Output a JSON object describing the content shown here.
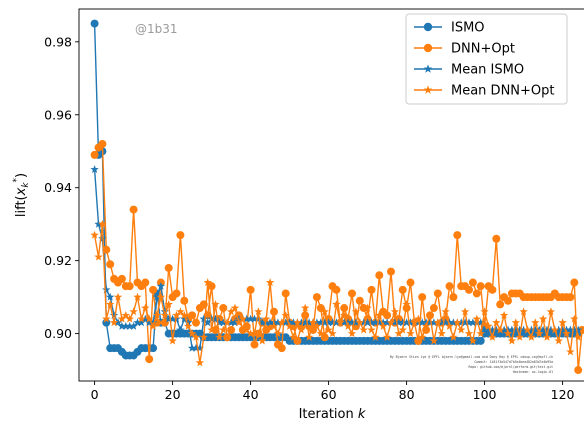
{
  "chart_data": {
    "type": "line",
    "xlabel": "Iteration k",
    "ylabel": "lift(x_k*)",
    "xlim": [
      -4,
      126
    ],
    "ylim": [
      0.887,
      0.989
    ],
    "xticks": [
      0,
      20,
      40,
      60,
      80,
      100,
      120
    ],
    "yticks": [
      0.9,
      0.92,
      0.94,
      0.96,
      0.98
    ],
    "ytick_labels": [
      "0.90",
      "0.92",
      "0.94",
      "0.96",
      "0.98"
    ],
    "grid": false,
    "legend_position": "top-right",
    "watermark": "@1b31",
    "credit_lines": [
      "By Bjoern Stien Lye @ EPFL bjoern.lye@gmail.com and Dony Hay @ EPFL cdosp.cay@epfl.ch",
      "Commit: 1b31f3a547d7b3e4bea482a83d7e4b95a",
      "Repo: github.com/bjornl/perform.git/test.git",
      "Hostname: ws-login-01"
    ],
    "series": [
      {
        "name": "ISMO",
        "color": "#1f77b4",
        "marker": "circle",
        "y": [
          0.985,
          0.949,
          0.95,
          0.903,
          0.896,
          0.896,
          0.896,
          0.895,
          0.894,
          0.894,
          0.894,
          0.895,
          0.896,
          0.896,
          0.896,
          0.896,
          0.911,
          0.903,
          0.903,
          0.9,
          0.9,
          0.9,
          0.9,
          0.9,
          0.9,
          0.9,
          0.9,
          0.9,
          0.899,
          0.899,
          0.899,
          0.899,
          0.899,
          0.899,
          0.899,
          0.899,
          0.899,
          0.899,
          0.899,
          0.899,
          0.899,
          0.899,
          0.899,
          0.899,
          0.899,
          0.899,
          0.899,
          0.899,
          0.899,
          0.899,
          0.898,
          0.898,
          0.898,
          0.898,
          0.898,
          0.898,
          0.898,
          0.898,
          0.898,
          0.898,
          0.898,
          0.898,
          0.898,
          0.898,
          0.898,
          0.898,
          0.898,
          0.898,
          0.898,
          0.898,
          0.898,
          0.898,
          0.898,
          0.898,
          0.898,
          0.898,
          0.898,
          0.898,
          0.898,
          0.898,
          0.898,
          0.898,
          0.898,
          0.898,
          0.898,
          0.898,
          0.898,
          0.898,
          0.898,
          0.898,
          0.898,
          0.898,
          0.898,
          0.898,
          0.898,
          0.898,
          0.898,
          0.898,
          0.898,
          0.898,
          0.9,
          0.9,
          0.9,
          0.9,
          0.9,
          0.9,
          0.9,
          0.9,
          0.9,
          0.9,
          0.9,
          0.9,
          0.9,
          0.9,
          0.9,
          0.9,
          0.9,
          0.9,
          0.9,
          0.9,
          0.9,
          0.9,
          0.9,
          0.9,
          0.9
        ]
      },
      {
        "name": "DNN+Opt",
        "color": "#ff7f0e",
        "marker": "circle",
        "y": [
          0.949,
          0.951,
          0.952,
          0.923,
          0.919,
          0.915,
          0.914,
          0.915,
          0.913,
          0.913,
          0.934,
          0.914,
          0.913,
          0.914,
          0.893,
          0.912,
          0.903,
          0.914,
          0.903,
          0.918,
          0.91,
          0.911,
          0.927,
          0.909,
          0.904,
          0.905,
          0.903,
          0.907,
          0.908,
          0.905,
          0.913,
          0.901,
          0.904,
          0.907,
          0.899,
          0.901,
          0.904,
          0.905,
          0.901,
          0.902,
          0.912,
          0.897,
          0.9,
          0.903,
          0.901,
          0.902,
          0.906,
          0.897,
          0.896,
          0.911,
          0.903,
          0.902,
          0.898,
          0.902,
          0.905,
          0.902,
          0.901,
          0.91,
          0.907,
          0.899,
          0.904,
          0.913,
          0.912,
          0.903,
          0.907,
          0.904,
          0.911,
          0.902,
          0.909,
          0.907,
          0.904,
          0.912,
          0.903,
          0.916,
          0.906,
          0.905,
          0.917,
          0.903,
          0.904,
          0.912,
          0.907,
          0.914,
          0.903,
          0.898,
          0.91,
          0.901,
          0.905,
          0.907,
          0.911,
          0.903,
          0.904,
          0.913,
          0.91,
          0.927,
          0.913,
          0.913,
          0.912,
          0.914,
          0.911,
          0.913,
          0.902,
          0.913,
          0.912,
          0.926,
          0.908,
          0.91,
          0.909,
          0.911,
          0.911,
          0.911,
          0.91,
          0.91,
          0.91,
          0.91,
          0.91,
          0.91,
          0.91,
          0.91,
          0.911,
          0.91,
          0.91,
          0.91,
          0.91,
          0.914,
          0.89,
          0.901
        ]
      },
      {
        "name": "Mean ISMO",
        "color": "#1f77b4",
        "marker": "star",
        "y": [
          0.945,
          0.93,
          0.926,
          0.912,
          0.91,
          0.905,
          0.903,
          0.902,
          0.902,
          0.902,
          0.902,
          0.903,
          0.903,
          0.904,
          0.903,
          0.903,
          0.91,
          0.913,
          0.906,
          0.904,
          0.904,
          0.904,
          0.901,
          0.904,
          0.903,
          0.896,
          0.896,
          0.896,
          0.904,
          0.903,
          0.904,
          0.904,
          0.903,
          0.903,
          0.903,
          0.903,
          0.903,
          0.904,
          0.904,
          0.904,
          0.904,
          0.904,
          0.904,
          0.903,
          0.903,
          0.903,
          0.903,
          0.903,
          0.903,
          0.903,
          0.903,
          0.903,
          0.903,
          0.903,
          0.903,
          0.903,
          0.903,
          0.903,
          0.903,
          0.903,
          0.903,
          0.903,
          0.903,
          0.903,
          0.903,
          0.903,
          0.903,
          0.903,
          0.903,
          0.903,
          0.903,
          0.903,
          0.903,
          0.903,
          0.903,
          0.903,
          0.903,
          0.903,
          0.903,
          0.903,
          0.903,
          0.903,
          0.903,
          0.903,
          0.903,
          0.903,
          0.903,
          0.903,
          0.903,
          0.903,
          0.903,
          0.903,
          0.903,
          0.903,
          0.903,
          0.903,
          0.903,
          0.903,
          0.903,
          0.903,
          0.901,
          0.901,
          0.901,
          0.901,
          0.901,
          0.901,
          0.901,
          0.901,
          0.901,
          0.901,
          0.901,
          0.901,
          0.901,
          0.901,
          0.901,
          0.901,
          0.901,
          0.901,
          0.901,
          0.901,
          0.901,
          0.901,
          0.901,
          0.901,
          0.901
        ]
      },
      {
        "name": "Mean DNN+Opt",
        "color": "#ff7f0e",
        "marker": "star",
        "y": [
          0.927,
          0.921,
          0.93,
          0.904,
          0.908,
          0.903,
          0.91,
          0.904,
          0.905,
          0.904,
          0.906,
          0.91,
          0.904,
          0.907,
          0.904,
          0.902,
          0.905,
          0.91,
          0.905,
          0.908,
          0.898,
          0.905,
          0.906,
          0.905,
          0.902,
          0.9,
          0.899,
          0.892,
          0.899,
          0.914,
          0.901,
          0.908,
          0.899,
          0.901,
          0.903,
          0.906,
          0.907,
          0.903,
          0.904,
          0.901,
          0.9,
          0.9,
          0.906,
          0.898,
          0.904,
          0.914,
          0.902,
          0.9,
          0.903,
          0.905,
          0.902,
          0.899,
          0.903,
          0.901,
          0.907,
          0.899,
          0.903,
          0.902,
          0.9,
          0.906,
          0.901,
          0.9,
          0.908,
          0.903,
          0.905,
          0.902,
          0.9,
          0.906,
          0.903,
          0.901,
          0.907,
          0.901,
          0.899,
          0.905,
          0.902,
          0.899,
          0.903,
          0.906,
          0.9,
          0.901,
          0.908,
          0.9,
          0.903,
          0.904,
          0.899,
          0.902,
          0.905,
          0.898,
          0.903,
          0.9,
          0.906,
          0.902,
          0.899,
          0.903,
          0.901,
          0.906,
          0.9,
          0.898,
          0.904,
          0.9,
          0.906,
          0.902,
          0.899,
          0.903,
          0.901,
          0.905,
          0.9,
          0.898,
          0.903,
          0.899,
          0.906,
          0.901,
          0.899,
          0.903,
          0.9,
          0.904,
          0.899,
          0.906,
          0.901,
          0.898,
          0.903,
          0.9,
          0.895,
          0.904,
          0.899
        ]
      }
    ]
  }
}
